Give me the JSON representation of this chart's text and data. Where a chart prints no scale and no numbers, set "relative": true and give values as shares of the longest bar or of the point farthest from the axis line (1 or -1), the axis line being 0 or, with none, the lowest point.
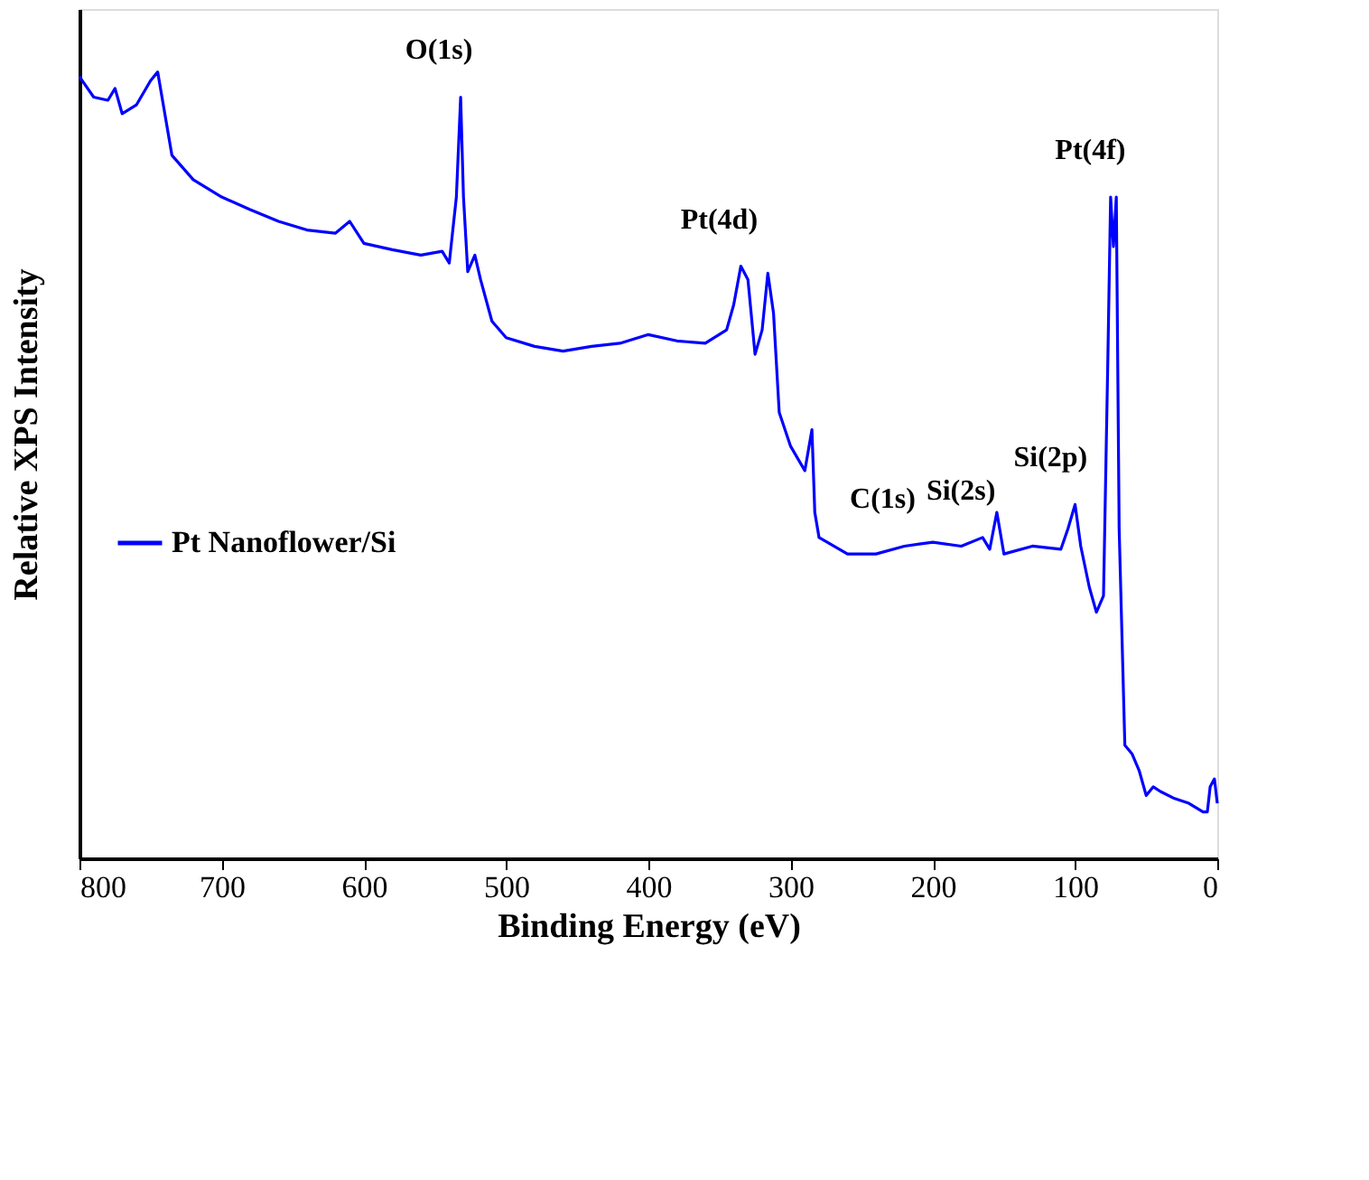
{
  "chart_data": {
    "type": "line",
    "relative": true,
    "xlabel": "Binding Energy (eV)",
    "ylabel": "Relative XPS Intensity",
    "xlim": [
      800,
      0
    ],
    "xticks": [
      800,
      700,
      600,
      500,
      400,
      300,
      200,
      100,
      0
    ],
    "legend": "left",
    "grid": false,
    "tick_labels": "x",
    "series": [
      {
        "name": "Pt Nanoflower/Si",
        "color": "#0000ff",
        "x": [
          800,
          790,
          780,
          775,
          770,
          760,
          750,
          745,
          740,
          735,
          720,
          700,
          680,
          660,
          640,
          620,
          610,
          600,
          580,
          560,
          545,
          540,
          535,
          532,
          530,
          527,
          522,
          518,
          510,
          500,
          480,
          460,
          440,
          420,
          400,
          380,
          360,
          345,
          340,
          335,
          330,
          325,
          320,
          316,
          312,
          308,
          300,
          290,
          285,
          283,
          280,
          260,
          240,
          220,
          200,
          180,
          165,
          160,
          155,
          150,
          130,
          110,
          105,
          100,
          96,
          90,
          85,
          80,
          77,
          75,
          73,
          71,
          69,
          65,
          60,
          55,
          50,
          45,
          40,
          30,
          20,
          10,
          7,
          5,
          2,
          0
        ],
        "values": [
          0.994,
          0.968,
          0.964,
          0.979,
          0.947,
          0.958,
          0.989,
          1,
          0.947,
          0.894,
          0.863,
          0.841,
          0.825,
          0.81,
          0.799,
          0.795,
          0.81,
          0.782,
          0.774,
          0.767,
          0.772,
          0.757,
          0.841,
          0.968,
          0.841,
          0.746,
          0.767,
          0.736,
          0.683,
          0.662,
          0.651,
          0.645,
          0.651,
          0.655,
          0.666,
          0.658,
          0.655,
          0.672,
          0.704,
          0.753,
          0.736,
          0.641,
          0.672,
          0.744,
          0.693,
          0.567,
          0.524,
          0.493,
          0.545,
          0.44,
          0.408,
          0.387,
          0.387,
          0.397,
          0.402,
          0.397,
          0.408,
          0.393,
          0.44,
          0.387,
          0.397,
          0.393,
          0.419,
          0.45,
          0.397,
          0.345,
          0.313,
          0.334,
          0.63,
          0.841,
          0.778,
          0.841,
          0.419,
          0.144,
          0.133,
          0.112,
          0.08,
          0.091,
          0.085,
          0.076,
          0.07,
          0.059,
          0.059,
          0.091,
          0.101,
          0.07
        ]
      }
    ],
    "annotations": [
      {
        "text": "O(1s)",
        "x": 532,
        "y": 0.968
      },
      {
        "text": "Pt(4d)",
        "x": 335,
        "y": 0.753
      },
      {
        "text": "C(1s)",
        "x": 220,
        "y": 0.397
      },
      {
        "text": "Si(2s)",
        "x": 165,
        "y": 0.408
      },
      {
        "text": "Si(2p)",
        "x": 102,
        "y": 0.45
      },
      {
        "text": "Pt(4f)",
        "x": 74,
        "y": 0.841
      }
    ]
  }
}
